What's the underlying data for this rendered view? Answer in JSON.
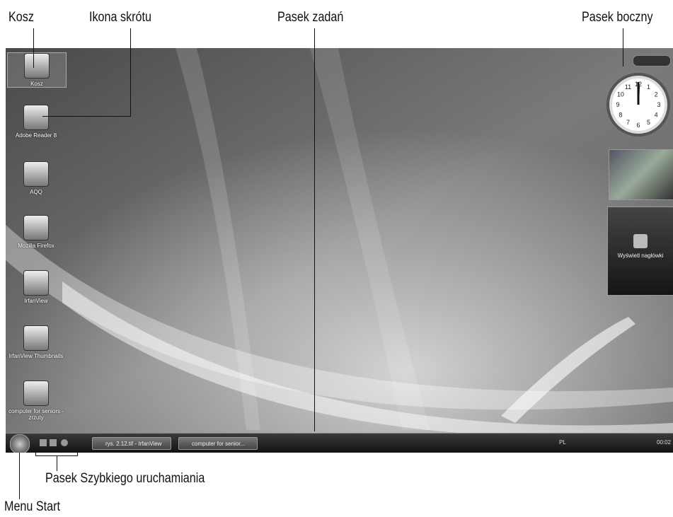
{
  "callouts": {
    "recycle_bin": "Kosz",
    "shortcut_icon": "Ikona skrótu",
    "taskbar": "Pasek zadań",
    "sidebar": "Pasek boczny",
    "quick_launch": "Pasek Szybkiego uruchamiania",
    "start_menu": "Menu Start"
  },
  "desktop_icons": [
    {
      "label": "Kosz"
    },
    {
      "label": "Adobe Reader 8"
    },
    {
      "label": "AQQ"
    },
    {
      "label": "Mozilla Firefox"
    },
    {
      "label": "IrfanView"
    },
    {
      "label": "IrfanView Thumbnails"
    },
    {
      "label": "computer for seniors - zrzuty"
    }
  ],
  "taskbar": {
    "buttons": [
      "rys. 2.12.tif - IrfanView",
      "computer for senior..."
    ],
    "language": "PL",
    "clock": "00:02"
  },
  "sidebar": {
    "clock_face": [
      12,
      1,
      2,
      3,
      4,
      5,
      6,
      7,
      8,
      9,
      10,
      11
    ],
    "feed_text": "Wyświetl nagłówki"
  }
}
